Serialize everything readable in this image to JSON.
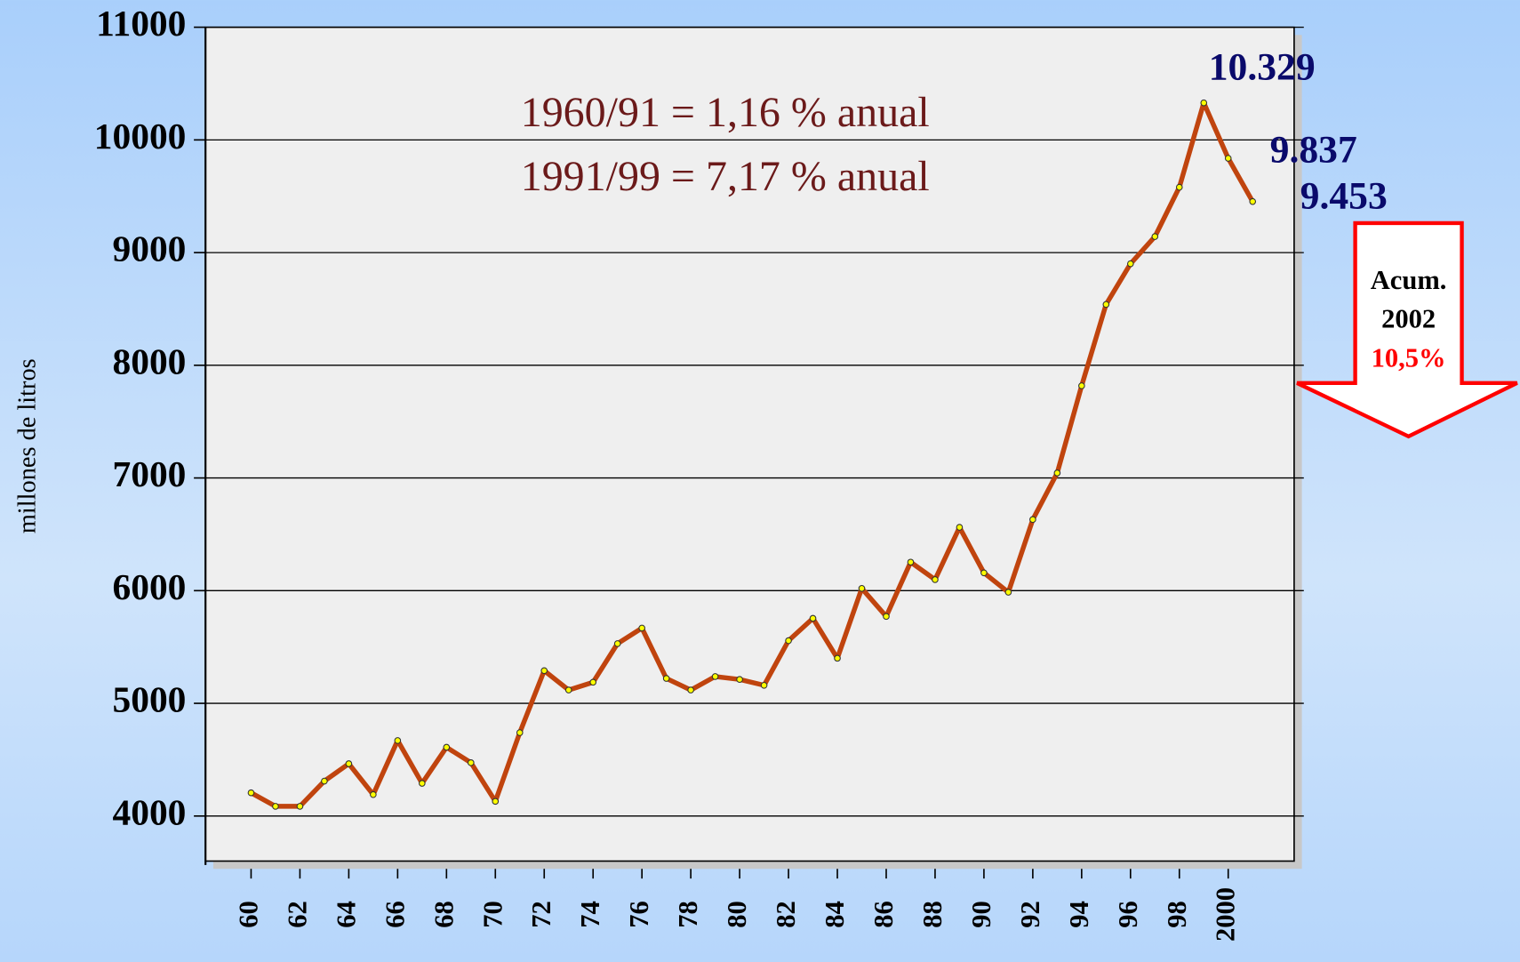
{
  "chart_data": {
    "type": "line",
    "ylabel": "millones de litros",
    "annotations": [
      "1960/91 = 1,16 % anual",
      "1991/99 = 7,17 % anual"
    ],
    "callout": [
      "Acum.",
      "2002",
      "10,5%"
    ],
    "categories": [
      "60",
      null,
      "62",
      null,
      "64",
      null,
      "66",
      null,
      "68",
      null,
      "70",
      null,
      "72",
      null,
      "74",
      null,
      "76",
      null,
      "78",
      null,
      "80",
      null,
      "82",
      null,
      "84",
      null,
      "86",
      null,
      "88",
      null,
      "90",
      null,
      "92",
      null,
      "94",
      null,
      "96",
      null,
      "98",
      null,
      "2000",
      null
    ],
    "series": [
      {
        "name": "millones de litros",
        "color": "#c0440e",
        "values": [
          4206,
          4086,
          4086,
          4310,
          4464,
          4190,
          4670,
          4290,
          4610,
          4473,
          4130,
          4740,
          5290,
          5118,
          5187,
          5530,
          5668,
          5221,
          5118,
          5238,
          5212,
          5160,
          5556,
          5754,
          5400,
          6020,
          5771,
          6253,
          6098,
          6562,
          6158,
          5986,
          6631,
          7044,
          7818,
          8540,
          8901,
          9142,
          9580,
          10329,
          9837,
          9453
        ],
        "value_labels": [
          null,
          null,
          null,
          null,
          null,
          null,
          null,
          null,
          null,
          null,
          null,
          null,
          null,
          null,
          null,
          null,
          null,
          null,
          null,
          null,
          null,
          null,
          null,
          null,
          null,
          null,
          null,
          null,
          null,
          null,
          null,
          null,
          null,
          null,
          null,
          null,
          null,
          null,
          null,
          "10.329",
          "9.837",
          "9.453"
        ]
      }
    ],
    "ylim": [
      3600,
      11000
    ],
    "yticks": [
      4000,
      5000,
      6000,
      7000,
      8000,
      9000,
      10000,
      11000
    ],
    "grid": true
  }
}
